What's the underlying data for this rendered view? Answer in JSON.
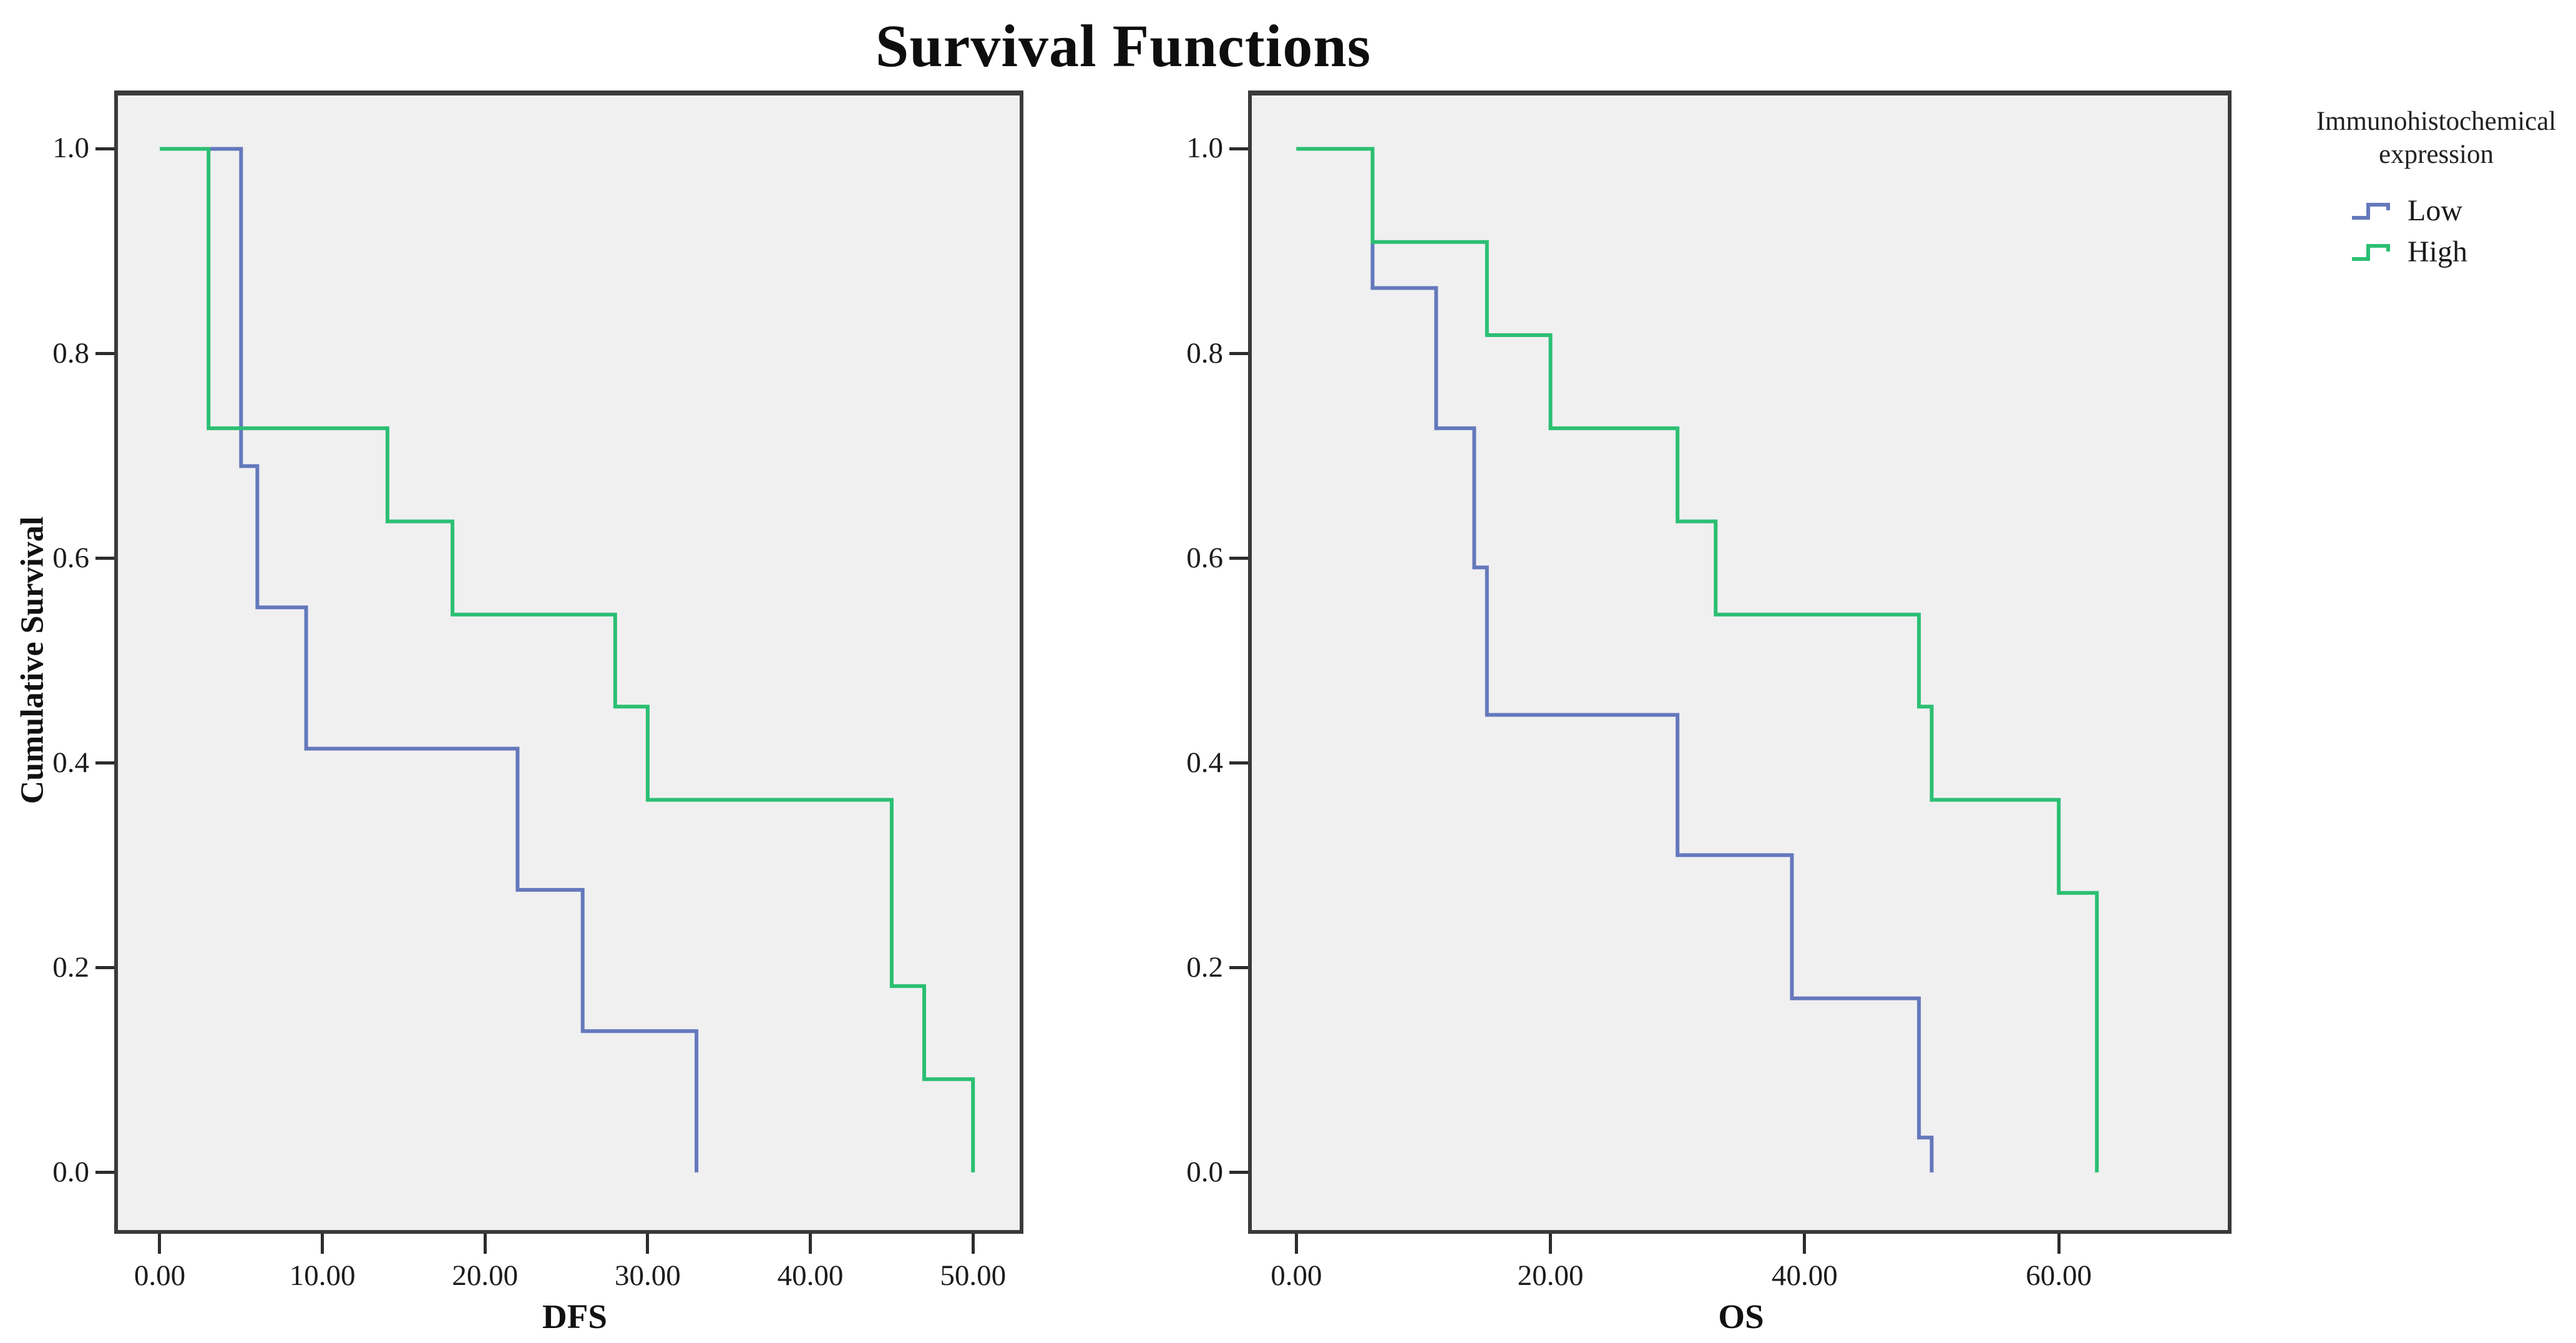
{
  "title": "Survival Functions",
  "y_axis_title": "Cumulative Survival",
  "colors": {
    "plot_background": "#F0F0F1",
    "frame_border": "#3A3A3A",
    "text": "#1A1A1A",
    "low_line": "#6478BC",
    "high_line": "#2BBF72"
  },
  "legend": {
    "title_line1": "Immunohistochemical",
    "title_line2": "expression",
    "items": [
      {
        "label": "Low",
        "color": "#6478BC",
        "icon": "step-line-icon"
      },
      {
        "label": "High",
        "color": "#2BBF72",
        "icon": "step-line-icon"
      }
    ]
  },
  "chart_data": [
    {
      "type": "line",
      "subtype": "kaplan-meier-step",
      "panel": "left",
      "xlabel": "DFS",
      "ylabel": "Cumulative Survival",
      "xticks": [
        0,
        10,
        20,
        30,
        40,
        50
      ],
      "xtick_labels": [
        "0.00",
        "10.00",
        "20.00",
        "30.00",
        "40.00",
        "50.00"
      ],
      "yticks": [
        1.0,
        0.8,
        0.6,
        0.4,
        0.2,
        0.0
      ],
      "ytick_labels": [
        "1.0",
        "0.8",
        "0.6",
        "0.4",
        "0.2",
        "0.0"
      ],
      "xlim": [
        -2.8,
        53.1
      ],
      "ylim": [
        -0.06,
        1.057
      ],
      "grid": false,
      "legend_position": "right",
      "steps_format": "[time, cumulative_survival_after_event]",
      "series": [
        {
          "name": "Low",
          "color": "#6478BC",
          "steps": [
            [
              0,
              1.0
            ],
            [
              5,
              0.69
            ],
            [
              6,
              0.552
            ],
            [
              9,
              0.414
            ],
            [
              22,
              0.276
            ],
            [
              26,
              0.138
            ],
            [
              33,
              0.0
            ]
          ]
        },
        {
          "name": "High",
          "color": "#2BBF72",
          "steps": [
            [
              0,
              1.0
            ],
            [
              3,
              0.727
            ],
            [
              14,
              0.636
            ],
            [
              18,
              0.545
            ],
            [
              28,
              0.455
            ],
            [
              30,
              0.364
            ],
            [
              45,
              0.182
            ],
            [
              47,
              0.091
            ],
            [
              50,
              0.0
            ]
          ]
        }
      ]
    },
    {
      "type": "line",
      "subtype": "kaplan-meier-step",
      "panel": "right",
      "xlabel": "OS",
      "ylabel": "Cumulative Survival",
      "xticks": [
        0,
        20,
        40,
        60
      ],
      "xtick_labels": [
        "0.00",
        "20.00",
        "40.00",
        "60.00"
      ],
      "yticks": [
        1.0,
        0.8,
        0.6,
        0.4,
        0.2,
        0.0
      ],
      "ytick_labels": [
        "1.0",
        "0.8",
        "0.6",
        "0.4",
        "0.2",
        "0.0"
      ],
      "xlim": [
        -3.8,
        73.6
      ],
      "ylim": [
        -0.06,
        1.057
      ],
      "grid": false,
      "legend_position": "right",
      "steps_format": "[time, cumulative_survival_after_event]",
      "series": [
        {
          "name": "Low",
          "color": "#6478BC",
          "steps": [
            [
              0,
              1.0
            ],
            [
              6,
              0.864
            ],
            [
              11,
              0.727
            ],
            [
              14,
              0.591
            ],
            [
              15,
              0.447
            ],
            [
              30,
              0.31
            ],
            [
              39,
              0.17
            ],
            [
              49,
              0.034
            ],
            [
              50,
              0.0
            ]
          ]
        },
        {
          "name": "High",
          "color": "#2BBF72",
          "steps": [
            [
              0,
              1.0
            ],
            [
              6,
              0.909
            ],
            [
              15,
              0.818
            ],
            [
              20,
              0.727
            ],
            [
              30,
              0.636
            ],
            [
              33,
              0.545
            ],
            [
              49,
              0.455
            ],
            [
              50,
              0.364
            ],
            [
              60,
              0.273
            ],
            [
              63,
              0.0
            ]
          ]
        }
      ]
    }
  ]
}
